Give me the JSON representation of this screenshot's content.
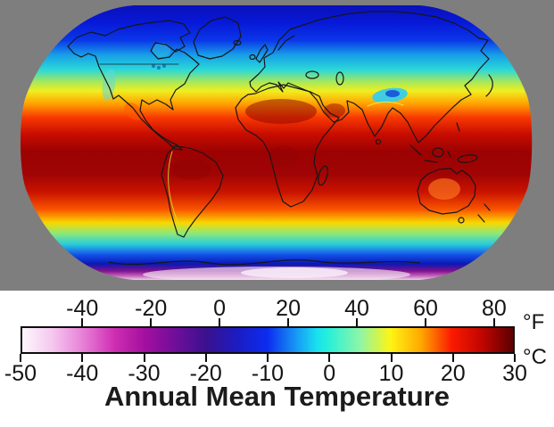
{
  "map": {
    "background_color": "#7e7e7e",
    "zonal_gradient": [
      {
        "o": 0.0,
        "c": "#0a10b8"
      },
      {
        "o": 0.062,
        "c": "#0718d8"
      },
      {
        "o": 0.127,
        "c": "#0a36e8"
      },
      {
        "o": 0.182,
        "c": "#18a0e8"
      },
      {
        "o": 0.234,
        "c": "#2ad8d8"
      },
      {
        "o": 0.279,
        "c": "#a8e85a"
      },
      {
        "o": 0.312,
        "c": "#f0ee20"
      },
      {
        "o": 0.357,
        "c": "#ffa400"
      },
      {
        "o": 0.409,
        "c": "#f83800"
      },
      {
        "o": 0.468,
        "c": "#c80d00"
      },
      {
        "o": 0.532,
        "c": "#9c0202"
      },
      {
        "o": 0.614,
        "c": "#a00404"
      },
      {
        "o": 0.679,
        "c": "#c81200"
      },
      {
        "o": 0.744,
        "c": "#fa5500"
      },
      {
        "o": 0.792,
        "c": "#f8d800"
      },
      {
        "o": 0.831,
        "c": "#8ce87a"
      },
      {
        "o": 0.87,
        "c": "#28ccdc"
      },
      {
        "o": 0.909,
        "c": "#1450e8"
      },
      {
        "o": 0.942,
        "c": "#0a18b4"
      },
      {
        "o": 0.968,
        "c": "#84128c"
      },
      {
        "o": 0.987,
        "c": "#c86ec0"
      },
      {
        "o": 1.0,
        "c": "#ecd2ea"
      }
    ],
    "features": {
      "outline": "#16161a",
      "greenland": "#5213ad",
      "tibet": "#36cdeb",
      "tibet_core": "#1040d8",
      "himalaya": "#ffe93c",
      "rockies": "#57d8e8",
      "hudson": "#2bb8e0",
      "mexico_hot": "#ff5a00",
      "sahara": "#8a0303",
      "arabia": "#8a0303",
      "amazon": "#8a0303",
      "congo": "#8a0303",
      "australia_hot": "#ff7a1e",
      "andes": "#cfe62e",
      "snow": "#f6e9f6",
      "sea_fill": "#1040c0",
      "lakes": "#0a3ca0"
    }
  },
  "legend": {
    "title": "Annual Mean Temperature",
    "fahrenheit": {
      "unit": "°F",
      "ticks": [
        -40,
        -20,
        0,
        20,
        40,
        60,
        80
      ]
    },
    "celsius": {
      "unit": "°C",
      "min": -50,
      "max": 30,
      "ticks": [
        -50,
        -40,
        -30,
        -20,
        -10,
        0,
        10,
        20,
        30
      ]
    },
    "colorbar": {
      "border_color": "#0d0d0d",
      "stops": [
        {
          "t": -50,
          "c": "#fdf7fd"
        },
        {
          "t": -45,
          "c": "#f5c6ee"
        },
        {
          "t": -40,
          "c": "#e77ed6"
        },
        {
          "t": -35,
          "c": "#cf2eb3"
        },
        {
          "t": -30,
          "c": "#a30f9f"
        },
        {
          "t": -25,
          "c": "#6f0e9a"
        },
        {
          "t": -20,
          "c": "#3a118e"
        },
        {
          "t": -15,
          "c": "#1c1cc2"
        },
        {
          "t": -10,
          "c": "#0c2cf0"
        },
        {
          "t": -5,
          "c": "#18a0f5"
        },
        {
          "t": -2,
          "c": "#19e0f0"
        },
        {
          "t": 0,
          "c": "#2af0d8"
        },
        {
          "t": 5,
          "c": "#8df5a8"
        },
        {
          "t": 10,
          "c": "#fdf515"
        },
        {
          "t": 15,
          "c": "#ffa800"
        },
        {
          "t": 20,
          "c": "#fb1a00"
        },
        {
          "t": 25,
          "c": "#c00500"
        },
        {
          "t": 30,
          "c": "#5c0000"
        }
      ]
    }
  }
}
